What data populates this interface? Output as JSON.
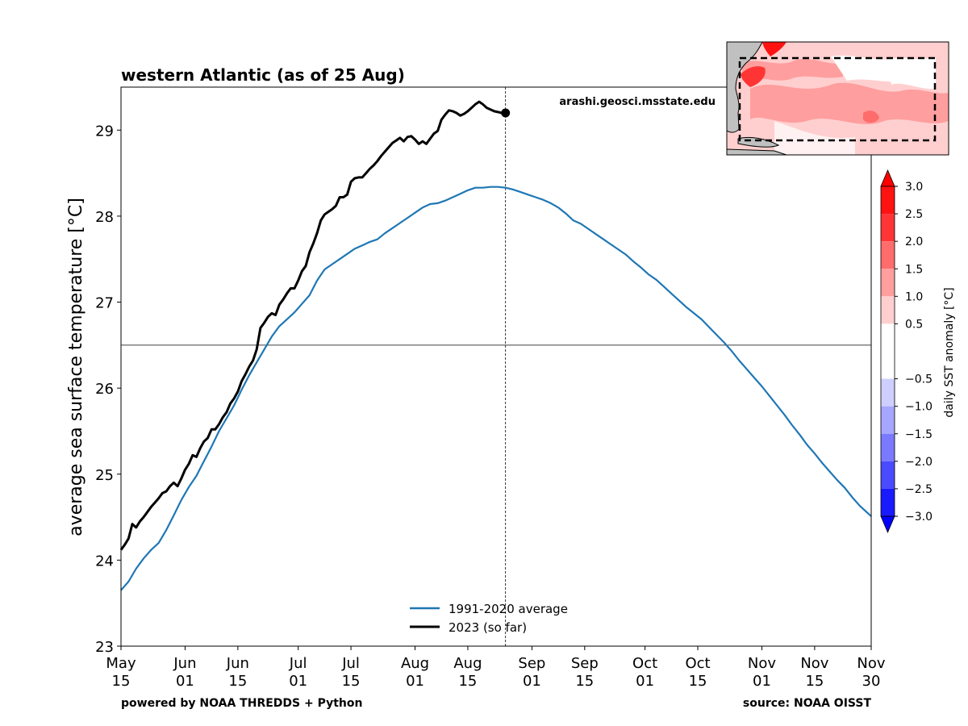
{
  "chart_data": {
    "type": "line",
    "title": "western Atlantic (as of 25 Aug)",
    "watermark": "arashi.geosci.msstate.edu",
    "ylabel": "average sea surface temperature [°C]",
    "xlabel": "",
    "ylim": [
      23,
      29.5
    ],
    "yticks": [
      23,
      24,
      25,
      26,
      27,
      28,
      29
    ],
    "x_range": [
      "2023-05-15",
      "2023-11-30"
    ],
    "xticks": [
      {
        "date": "2023-05-15",
        "line1": "May",
        "line2": "15"
      },
      {
        "date": "2023-06-01",
        "line1": "Jun",
        "line2": "01"
      },
      {
        "date": "2023-06-15",
        "line1": "Jun",
        "line2": "15"
      },
      {
        "date": "2023-07-01",
        "line1": "Jul",
        "line2": "01"
      },
      {
        "date": "2023-07-15",
        "line1": "Jul",
        "line2": "15"
      },
      {
        "date": "2023-08-01",
        "line1": "Aug",
        "line2": "01"
      },
      {
        "date": "2023-08-15",
        "line1": "Aug",
        "line2": "15"
      },
      {
        "date": "2023-09-01",
        "line1": "Sep",
        "line2": "01"
      },
      {
        "date": "2023-09-15",
        "line1": "Sep",
        "line2": "15"
      },
      {
        "date": "2023-10-01",
        "line1": "Oct",
        "line2": "01"
      },
      {
        "date": "2023-10-15",
        "line1": "Oct",
        "line2": "15"
      },
      {
        "date": "2023-11-01",
        "line1": "Nov",
        "line2": "01"
      },
      {
        "date": "2023-11-15",
        "line1": "Nov",
        "line2": "15"
      },
      {
        "date": "2023-11-30",
        "line1": "Nov",
        "line2": "30"
      }
    ],
    "hline": 26.5,
    "vline_date": "2023-08-25",
    "legend_position": "bottom-center",
    "grid": false,
    "series": [
      {
        "name": "1991-2020 average",
        "color": "#1f77b4",
        "points": [
          [
            "2023-05-15",
            23.65
          ],
          [
            "2023-05-17",
            23.75
          ],
          [
            "2023-05-19",
            23.9
          ],
          [
            "2023-05-21",
            24.02
          ],
          [
            "2023-05-23",
            24.12
          ],
          [
            "2023-05-25",
            24.2
          ],
          [
            "2023-05-27",
            24.35
          ],
          [
            "2023-05-29",
            24.52
          ],
          [
            "2023-05-31",
            24.7
          ],
          [
            "2023-06-02",
            24.85
          ],
          [
            "2023-06-04",
            24.98
          ],
          [
            "2023-06-06",
            25.15
          ],
          [
            "2023-06-08",
            25.32
          ],
          [
            "2023-06-10",
            25.5
          ],
          [
            "2023-06-12",
            25.65
          ],
          [
            "2023-06-14",
            25.8
          ],
          [
            "2023-06-16",
            25.98
          ],
          [
            "2023-06-18",
            26.15
          ],
          [
            "2023-06-20",
            26.3
          ],
          [
            "2023-06-22",
            26.45
          ],
          [
            "2023-06-24",
            26.6
          ],
          [
            "2023-06-26",
            26.72
          ],
          [
            "2023-06-28",
            26.8
          ],
          [
            "2023-06-30",
            26.88
          ],
          [
            "2023-07-02",
            26.98
          ],
          [
            "2023-07-04",
            27.08
          ],
          [
            "2023-07-06",
            27.25
          ],
          [
            "2023-07-08",
            27.38
          ],
          [
            "2023-07-10",
            27.44
          ],
          [
            "2023-07-12",
            27.5
          ],
          [
            "2023-07-14",
            27.56
          ],
          [
            "2023-07-16",
            27.62
          ],
          [
            "2023-07-18",
            27.66
          ],
          [
            "2023-07-20",
            27.7
          ],
          [
            "2023-07-22",
            27.73
          ],
          [
            "2023-07-24",
            27.8
          ],
          [
            "2023-07-26",
            27.86
          ],
          [
            "2023-07-28",
            27.92
          ],
          [
            "2023-07-30",
            27.98
          ],
          [
            "2023-08-01",
            28.04
          ],
          [
            "2023-08-03",
            28.1
          ],
          [
            "2023-08-05",
            28.14
          ],
          [
            "2023-08-07",
            28.15
          ],
          [
            "2023-08-09",
            28.18
          ],
          [
            "2023-08-11",
            28.22
          ],
          [
            "2023-08-13",
            28.26
          ],
          [
            "2023-08-15",
            28.3
          ],
          [
            "2023-08-17",
            28.33
          ],
          [
            "2023-08-19",
            28.33
          ],
          [
            "2023-08-21",
            28.34
          ],
          [
            "2023-08-23",
            28.34
          ],
          [
            "2023-08-25",
            28.33
          ],
          [
            "2023-08-27",
            28.31
          ],
          [
            "2023-08-29",
            28.28
          ],
          [
            "2023-08-31",
            28.25
          ],
          [
            "2023-09-02",
            28.22
          ],
          [
            "2023-09-04",
            28.19
          ],
          [
            "2023-09-06",
            28.15
          ],
          [
            "2023-09-08",
            28.1
          ],
          [
            "2023-09-10",
            28.03
          ],
          [
            "2023-09-12",
            27.95
          ],
          [
            "2023-09-14",
            27.91
          ],
          [
            "2023-09-16",
            27.85
          ],
          [
            "2023-09-18",
            27.79
          ],
          [
            "2023-09-20",
            27.73
          ],
          [
            "2023-09-22",
            27.67
          ],
          [
            "2023-09-24",
            27.61
          ],
          [
            "2023-09-26",
            27.55
          ],
          [
            "2023-09-28",
            27.47
          ],
          [
            "2023-09-30",
            27.4
          ],
          [
            "2023-10-02",
            27.32
          ],
          [
            "2023-10-04",
            27.26
          ],
          [
            "2023-10-06",
            27.18
          ],
          [
            "2023-10-08",
            27.1
          ],
          [
            "2023-10-10",
            27.02
          ],
          [
            "2023-10-12",
            26.94
          ],
          [
            "2023-10-14",
            26.87
          ],
          [
            "2023-10-16",
            26.8
          ],
          [
            "2023-10-18",
            26.71
          ],
          [
            "2023-10-20",
            26.62
          ],
          [
            "2023-10-22",
            26.53
          ],
          [
            "2023-10-24",
            26.43
          ],
          [
            "2023-10-26",
            26.32
          ],
          [
            "2023-10-28",
            26.22
          ],
          [
            "2023-10-30",
            26.12
          ],
          [
            "2023-11-01",
            26.02
          ],
          [
            "2023-11-03",
            25.91
          ],
          [
            "2023-11-05",
            25.8
          ],
          [
            "2023-11-07",
            25.69
          ],
          [
            "2023-11-09",
            25.57
          ],
          [
            "2023-11-11",
            25.46
          ],
          [
            "2023-11-13",
            25.34
          ],
          [
            "2023-11-15",
            25.24
          ],
          [
            "2023-11-17",
            25.13
          ],
          [
            "2023-11-19",
            25.03
          ],
          [
            "2023-11-21",
            24.93
          ],
          [
            "2023-11-23",
            24.84
          ],
          [
            "2023-11-25",
            24.73
          ],
          [
            "2023-11-27",
            24.63
          ],
          [
            "2023-11-29",
            24.55
          ],
          [
            "2023-11-30",
            24.51
          ]
        ]
      },
      {
        "name": "2023 (so far)",
        "color": "#000000",
        "points": [
          [
            "2023-05-15",
            24.12
          ],
          [
            "2023-05-16",
            24.18
          ],
          [
            "2023-05-17",
            24.25
          ],
          [
            "2023-05-18",
            24.42
          ],
          [
            "2023-05-19",
            24.38
          ],
          [
            "2023-05-20",
            24.45
          ],
          [
            "2023-05-21",
            24.5
          ],
          [
            "2023-05-22",
            24.56
          ],
          [
            "2023-05-23",
            24.62
          ],
          [
            "2023-05-24",
            24.67
          ],
          [
            "2023-05-25",
            24.72
          ],
          [
            "2023-05-26",
            24.78
          ],
          [
            "2023-05-27",
            24.8
          ],
          [
            "2023-05-28",
            24.86
          ],
          [
            "2023-05-29",
            24.9
          ],
          [
            "2023-05-30",
            24.86
          ],
          [
            "2023-05-31",
            24.95
          ],
          [
            "2023-06-01",
            25.05
          ],
          [
            "2023-06-02",
            25.12
          ],
          [
            "2023-06-03",
            25.22
          ],
          [
            "2023-06-04",
            25.2
          ],
          [
            "2023-06-05",
            25.3
          ],
          [
            "2023-06-06",
            25.38
          ],
          [
            "2023-06-07",
            25.42
          ],
          [
            "2023-06-08",
            25.52
          ],
          [
            "2023-06-09",
            25.52
          ],
          [
            "2023-06-10",
            25.58
          ],
          [
            "2023-06-11",
            25.66
          ],
          [
            "2023-06-12",
            25.72
          ],
          [
            "2023-06-13",
            25.82
          ],
          [
            "2023-06-14",
            25.88
          ],
          [
            "2023-06-15",
            25.96
          ],
          [
            "2023-06-16",
            26.08
          ],
          [
            "2023-06-17",
            26.16
          ],
          [
            "2023-06-18",
            26.25
          ],
          [
            "2023-06-19",
            26.32
          ],
          [
            "2023-06-20",
            26.45
          ],
          [
            "2023-06-21",
            26.7
          ],
          [
            "2023-06-22",
            26.76
          ],
          [
            "2023-06-23",
            26.83
          ],
          [
            "2023-06-24",
            26.87
          ],
          [
            "2023-06-25",
            26.85
          ],
          [
            "2023-06-26",
            26.97
          ],
          [
            "2023-06-27",
            27.03
          ],
          [
            "2023-06-28",
            27.1
          ],
          [
            "2023-06-29",
            27.16
          ],
          [
            "2023-06-30",
            27.16
          ],
          [
            "2023-07-01",
            27.25
          ],
          [
            "2023-07-02",
            27.36
          ],
          [
            "2023-07-03",
            27.42
          ],
          [
            "2023-07-04",
            27.58
          ],
          [
            "2023-07-05",
            27.68
          ],
          [
            "2023-07-06",
            27.8
          ],
          [
            "2023-07-07",
            27.95
          ],
          [
            "2023-07-08",
            28.02
          ],
          [
            "2023-07-09",
            28.05
          ],
          [
            "2023-07-10",
            28.08
          ],
          [
            "2023-07-11",
            28.12
          ],
          [
            "2023-07-12",
            28.22
          ],
          [
            "2023-07-13",
            28.22
          ],
          [
            "2023-07-14",
            28.25
          ],
          [
            "2023-07-15",
            28.4
          ],
          [
            "2023-07-16",
            28.44
          ],
          [
            "2023-07-17",
            28.45
          ],
          [
            "2023-07-18",
            28.45
          ],
          [
            "2023-07-19",
            28.5
          ],
          [
            "2023-07-20",
            28.55
          ],
          [
            "2023-07-21",
            28.59
          ],
          [
            "2023-07-22",
            28.64
          ],
          [
            "2023-07-23",
            28.7
          ],
          [
            "2023-07-24",
            28.75
          ],
          [
            "2023-07-25",
            28.8
          ],
          [
            "2023-07-26",
            28.85
          ],
          [
            "2023-07-27",
            28.88
          ],
          [
            "2023-07-28",
            28.91
          ],
          [
            "2023-07-29",
            28.87
          ],
          [
            "2023-07-30",
            28.92
          ],
          [
            "2023-07-31",
            28.93
          ],
          [
            "2023-08-01",
            28.89
          ],
          [
            "2023-08-02",
            28.84
          ],
          [
            "2023-08-03",
            28.87
          ],
          [
            "2023-08-04",
            28.84
          ],
          [
            "2023-08-05",
            28.9
          ],
          [
            "2023-08-06",
            28.96
          ],
          [
            "2023-08-07",
            28.99
          ],
          [
            "2023-08-08",
            29.12
          ],
          [
            "2023-08-09",
            29.18
          ],
          [
            "2023-08-10",
            29.23
          ],
          [
            "2023-08-11",
            29.22
          ],
          [
            "2023-08-12",
            29.2
          ],
          [
            "2023-08-13",
            29.17
          ],
          [
            "2023-08-14",
            29.19
          ],
          [
            "2023-08-15",
            29.22
          ],
          [
            "2023-08-16",
            29.26
          ],
          [
            "2023-08-17",
            29.3
          ],
          [
            "2023-08-18",
            29.33
          ],
          [
            "2023-08-19",
            29.3
          ],
          [
            "2023-08-20",
            29.26
          ],
          [
            "2023-08-21",
            29.24
          ],
          [
            "2023-08-22",
            29.22
          ],
          [
            "2023-08-23",
            29.21
          ],
          [
            "2023-08-24",
            29.2
          ],
          [
            "2023-08-25",
            29.2
          ]
        ],
        "end_marker": [
          "2023-08-25",
          29.2
        ]
      }
    ],
    "colorbar": {
      "label": "daily SST anomaly [°C]",
      "ticks": [
        "3.0",
        "2.5",
        "2.0",
        "1.5",
        "1.0",
        "0.5",
        "−0.5",
        "−1.0",
        "−1.5",
        "−2.0",
        "−2.5",
        "−3.0"
      ],
      "levels": [
        {
          "from": 2.5,
          "to": 3.0,
          "color": "#ff1212"
        },
        {
          "from": 2.0,
          "to": 2.5,
          "color": "#ff3535"
        },
        {
          "from": 1.5,
          "to": 2.0,
          "color": "#ff6c6c"
        },
        {
          "from": 1.0,
          "to": 1.5,
          "color": "#ff9e9e"
        },
        {
          "from": 0.5,
          "to": 1.0,
          "color": "#ffcfcf"
        },
        {
          "from": -0.5,
          "to": 0.5,
          "color": "#ffffff"
        },
        {
          "from": -1.0,
          "to": -0.5,
          "color": "#cfcfff"
        },
        {
          "from": -1.5,
          "to": -1.0,
          "color": "#a6a6ff"
        },
        {
          "from": -2.0,
          "to": -1.5,
          "color": "#7a7aff"
        },
        {
          "from": -2.5,
          "to": -2.0,
          "color": "#4a4aff"
        },
        {
          "from": -3.0,
          "to": -2.5,
          "color": "#1a1aff"
        }
      ],
      "extend_high_color": "#ff0000",
      "extend_low_color": "#0000ff"
    }
  },
  "footer": {
    "left": "powered by NOAA THREDDS + Python",
    "right": "source: NOAA OISST"
  }
}
